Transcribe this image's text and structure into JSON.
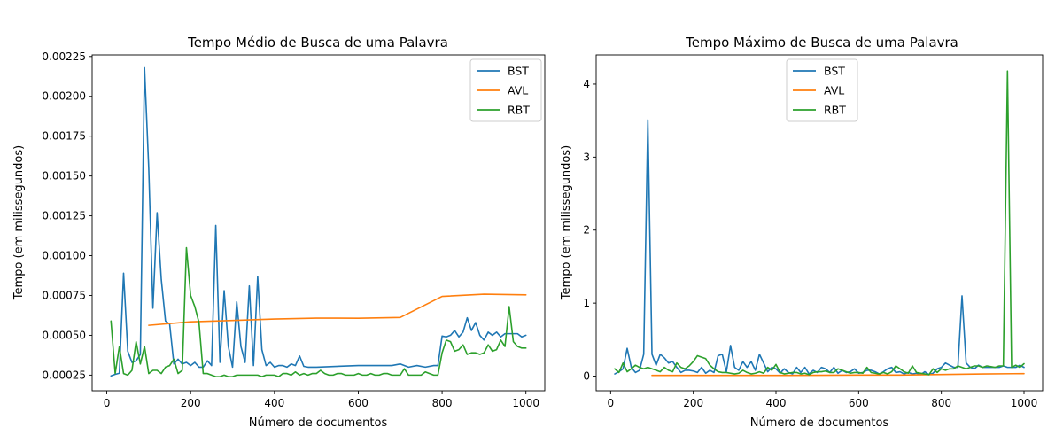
{
  "colors": {
    "BST": "#1f77b4",
    "AVL": "#ff7f0e",
    "RBT": "#2ca02c"
  },
  "chart_data": [
    {
      "type": "line",
      "title": "Tempo Médio de Busca de uma Palavra",
      "xlabel": "Número de documentos",
      "ylabel": "Tempo (em milissegundos)",
      "xlim": [
        -35,
        1045
      ],
      "ylim": [
        0.000152,
        0.00226
      ],
      "xticks": [
        0,
        200,
        400,
        600,
        800,
        1000
      ],
      "xtick_labels": [
        "0",
        "200",
        "400",
        "600",
        "800",
        "1000"
      ],
      "yticks": [
        0.00025,
        0.0005,
        0.00075,
        0.001,
        0.00125,
        0.0015,
        0.00175,
        0.002,
        0.00225
      ],
      "ytick_labels": [
        "0.00025",
        "0.00050",
        "0.00075",
        "0.00100",
        "0.00125",
        "0.00150",
        "0.00175",
        "0.00200",
        "0.00225"
      ],
      "legend": "top-right",
      "grid": false,
      "series": [
        {
          "name": "BST",
          "x": [
            10,
            20,
            30,
            40,
            50,
            60,
            70,
            80,
            90,
            100,
            110,
            120,
            130,
            140,
            150,
            160,
            170,
            180,
            190,
            200,
            210,
            220,
            230,
            240,
            250,
            260,
            270,
            280,
            290,
            300,
            310,
            320,
            330,
            340,
            350,
            360,
            370,
            380,
            390,
            400,
            410,
            420,
            430,
            440,
            450,
            460,
            470,
            480,
            490,
            500,
            600,
            640,
            680,
            700,
            720,
            740,
            760,
            780,
            790,
            800,
            810,
            820,
            830,
            840,
            850,
            860,
            870,
            880,
            890,
            900,
            910,
            920,
            930,
            940,
            950,
            960,
            970,
            980,
            990,
            1000
          ],
          "y": [
            0.000245,
            0.000255,
            0.000262,
            0.00089,
            0.0004,
            0.00033,
            0.00034,
            0.00038,
            0.00218,
            0.00155,
            0.00067,
            0.00127,
            0.00085,
            0.00059,
            0.00057,
            0.00032,
            0.00035,
            0.00032,
            0.00033,
            0.00031,
            0.00033,
            0.0003,
            0.0003,
            0.00034,
            0.00031,
            0.00119,
            0.00033,
            0.00078,
            0.00043,
            0.0003,
            0.00071,
            0.00043,
            0.00033,
            0.00081,
            0.00031,
            0.00087,
            0.00041,
            0.00031,
            0.00033,
            0.0003,
            0.00031,
            0.00031,
            0.0003,
            0.00032,
            0.00031,
            0.00037,
            0.000305,
            0.0003,
            0.0003,
            0.0003,
            0.00031,
            0.00031,
            0.00031,
            0.00032,
            0.0003,
            0.00031,
            0.0003,
            0.00031,
            0.00031,
            0.000495,
            0.00049,
            0.0005,
            0.00053,
            0.00049,
            0.00052,
            0.00061,
            0.00053,
            0.00058,
            0.0005,
            0.00047,
            0.00052,
            0.0005,
            0.00052,
            0.00049,
            0.00051,
            0.00051,
            0.00051,
            0.00051,
            0.00049,
            0.0005
          ]
        },
        {
          "name": "AVL",
          "x": [
            100,
            200,
            300,
            400,
            500,
            600,
            700,
            800,
            900,
            1000
          ],
          "y": [
            0.000563,
            0.000585,
            0.000593,
            0.000602,
            0.000608,
            0.000607,
            0.000612,
            0.000744,
            0.000758,
            0.000754
          ]
        },
        {
          "name": "RBT",
          "x": [
            10,
            20,
            30,
            40,
            50,
            60,
            70,
            80,
            90,
            100,
            110,
            120,
            130,
            140,
            150,
            160,
            170,
            180,
            190,
            200,
            210,
            220,
            230,
            240,
            250,
            260,
            270,
            280,
            290,
            300,
            310,
            320,
            330,
            340,
            350,
            360,
            370,
            380,
            390,
            400,
            410,
            420,
            430,
            440,
            450,
            460,
            470,
            480,
            490,
            500,
            510,
            520,
            530,
            540,
            550,
            560,
            570,
            580,
            590,
            600,
            610,
            620,
            630,
            640,
            650,
            660,
            670,
            680,
            690,
            700,
            710,
            720,
            730,
            740,
            750,
            760,
            770,
            780,
            790,
            800,
            810,
            820,
            830,
            840,
            850,
            860,
            870,
            880,
            890,
            900,
            910,
            920,
            930,
            940,
            950,
            960,
            970,
            980,
            990,
            1000
          ],
          "y": [
            0.00059,
            0.00026,
            0.00043,
            0.00026,
            0.00025,
            0.00028,
            0.00046,
            0.00032,
            0.00043,
            0.00026,
            0.00028,
            0.00028,
            0.00026,
            0.0003,
            0.00031,
            0.00035,
            0.00026,
            0.00028,
            0.00105,
            0.00075,
            0.00068,
            0.00058,
            0.00026,
            0.00026,
            0.00025,
            0.00024,
            0.00024,
            0.00025,
            0.00024,
            0.00024,
            0.00025,
            0.00025,
            0.00025,
            0.00025,
            0.00025,
            0.00025,
            0.00024,
            0.00025,
            0.00025,
            0.00025,
            0.00024,
            0.00026,
            0.00026,
            0.00025,
            0.00027,
            0.00025,
            0.00026,
            0.00025,
            0.00026,
            0.00026,
            0.00028,
            0.00026,
            0.00025,
            0.00025,
            0.00026,
            0.00026,
            0.00025,
            0.00025,
            0.00025,
            0.00026,
            0.00025,
            0.00025,
            0.00026,
            0.00025,
            0.00025,
            0.00026,
            0.00026,
            0.00025,
            0.00025,
            0.00025,
            0.00029,
            0.00025,
            0.00025,
            0.00025,
            0.00025,
            0.00027,
            0.00026,
            0.00025,
            0.00025,
            0.00039,
            0.00047,
            0.00046,
            0.0004,
            0.00041,
            0.00044,
            0.00038,
            0.00039,
            0.00039,
            0.00038,
            0.00039,
            0.00044,
            0.0004,
            0.00041,
            0.00047,
            0.00043,
            0.00068,
            0.00046,
            0.00043,
            0.00042,
            0.00042
          ]
        }
      ]
    },
    {
      "type": "line",
      "title": "Tempo Máximo de Busca de uma Palavra",
      "xlabel": "Número de documentos",
      "ylabel": "Tempo (em milissegundos)",
      "xlim": [
        -35,
        1045
      ],
      "ylim": [
        -0.2,
        4.4
      ],
      "xticks": [
        0,
        200,
        400,
        600,
        800,
        1000
      ],
      "xtick_labels": [
        "0",
        "200",
        "400",
        "600",
        "800",
        "1000"
      ],
      "yticks": [
        0,
        1,
        2,
        3,
        4
      ],
      "ytick_labels": [
        "0",
        "1",
        "2",
        "3",
        "4"
      ],
      "legend": "top-center",
      "grid": false,
      "series": [
        {
          "name": "BST",
          "x": [
            10,
            20,
            30,
            40,
            50,
            60,
            70,
            80,
            90,
            100,
            110,
            120,
            130,
            140,
            150,
            160,
            170,
            180,
            190,
            200,
            210,
            220,
            230,
            240,
            250,
            260,
            270,
            280,
            290,
            300,
            310,
            320,
            330,
            340,
            350,
            360,
            370,
            380,
            390,
            400,
            410,
            420,
            430,
            440,
            450,
            460,
            470,
            480,
            490,
            500,
            510,
            520,
            530,
            540,
            550,
            560,
            570,
            580,
            590,
            600,
            610,
            620,
            630,
            640,
            650,
            660,
            670,
            680,
            690,
            700,
            710,
            720,
            730,
            740,
            750,
            760,
            770,
            780,
            790,
            800,
            810,
            820,
            830,
            840,
            850,
            860,
            870,
            880,
            890,
            900,
            910,
            920,
            930,
            940,
            950,
            960,
            970,
            980,
            990,
            1000
          ],
          "y": [
            0.03,
            0.06,
            0.1,
            0.38,
            0.12,
            0.05,
            0.08,
            0.3,
            3.51,
            0.3,
            0.15,
            0.3,
            0.25,
            0.18,
            0.2,
            0.12,
            0.05,
            0.08,
            0.08,
            0.07,
            0.05,
            0.12,
            0.04,
            0.08,
            0.05,
            0.28,
            0.3,
            0.06,
            0.42,
            0.12,
            0.08,
            0.2,
            0.12,
            0.2,
            0.08,
            0.3,
            0.18,
            0.06,
            0.12,
            0.1,
            0.04,
            0.1,
            0.05,
            0.03,
            0.12,
            0.05,
            0.12,
            0.03,
            0.08,
            0.05,
            0.12,
            0.1,
            0.05,
            0.12,
            0.04,
            0.08,
            0.05,
            0.06,
            0.1,
            0.04,
            0.05,
            0.08,
            0.08,
            0.06,
            0.03,
            0.06,
            0.1,
            0.12,
            0.05,
            0.06,
            0.03,
            0.05,
            0.03,
            0.04,
            0.02,
            0.06,
            0.02,
            0.04,
            0.1,
            0.12,
            0.18,
            0.15,
            0.12,
            0.12,
            1.1,
            0.18,
            0.12,
            0.1,
            0.15,
            0.12,
            0.12,
            0.12,
            0.12,
            0.12,
            0.14,
            0.12,
            0.12,
            0.12,
            0.15,
            0.12
          ]
        },
        {
          "name": "AVL",
          "x": [
            100,
            200,
            300,
            400,
            500,
            600,
            700,
            800,
            900,
            1000
          ],
          "y": [
            0.01,
            0.01,
            0.01,
            0.01,
            0.012,
            0.015,
            0.015,
            0.022,
            0.03,
            0.035
          ]
        },
        {
          "name": "RBT",
          "x": [
            10,
            20,
            30,
            40,
            50,
            60,
            70,
            80,
            90,
            100,
            110,
            120,
            130,
            140,
            150,
            160,
            170,
            180,
            190,
            200,
            210,
            220,
            230,
            240,
            250,
            260,
            270,
            280,
            290,
            300,
            310,
            320,
            330,
            340,
            350,
            360,
            370,
            380,
            390,
            400,
            410,
            420,
            430,
            440,
            450,
            460,
            470,
            480,
            490,
            500,
            510,
            520,
            530,
            540,
            550,
            560,
            570,
            580,
            590,
            600,
            610,
            620,
            630,
            640,
            650,
            660,
            670,
            680,
            690,
            700,
            710,
            720,
            730,
            740,
            750,
            760,
            770,
            780,
            790,
            800,
            810,
            820,
            830,
            840,
            850,
            860,
            870,
            880,
            890,
            900,
            910,
            920,
            930,
            940,
            950,
            960,
            970,
            980,
            990,
            1000
          ],
          "y": [
            0.1,
            0.05,
            0.18,
            0.06,
            0.1,
            0.15,
            0.12,
            0.1,
            0.12,
            0.1,
            0.08,
            0.06,
            0.12,
            0.08,
            0.06,
            0.18,
            0.12,
            0.1,
            0.14,
            0.2,
            0.28,
            0.26,
            0.24,
            0.15,
            0.1,
            0.06,
            0.05,
            0.05,
            0.04,
            0.03,
            0.04,
            0.08,
            0.05,
            0.03,
            0.04,
            0.06,
            0.04,
            0.12,
            0.08,
            0.16,
            0.05,
            0.03,
            0.04,
            0.05,
            0.05,
            0.03,
            0.04,
            0.02,
            0.05,
            0.06,
            0.06,
            0.07,
            0.05,
            0.05,
            0.1,
            0.08,
            0.06,
            0.04,
            0.05,
            0.05,
            0.04,
            0.12,
            0.05,
            0.04,
            0.03,
            0.05,
            0.03,
            0.06,
            0.14,
            0.1,
            0.06,
            0.04,
            0.14,
            0.05,
            0.04,
            0.03,
            0.02,
            0.1,
            0.05,
            0.1,
            0.08,
            0.1,
            0.1,
            0.14,
            0.12,
            0.1,
            0.12,
            0.14,
            0.14,
            0.12,
            0.14,
            0.13,
            0.12,
            0.14,
            0.14,
            4.18,
            0.12,
            0.15,
            0.12,
            0.17
          ]
        }
      ]
    }
  ]
}
